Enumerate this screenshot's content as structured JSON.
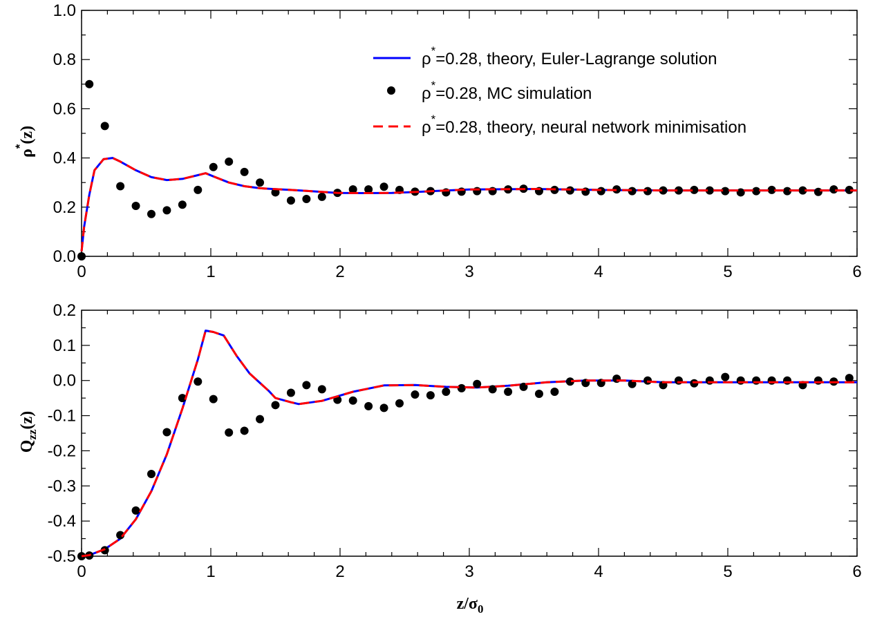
{
  "legend": {
    "items": [
      {
        "rho": "ρ",
        "sup": "*",
        "text": "=0.28, theory, Euler-Lagrange solution",
        "color": "#0000ff",
        "style": "solid"
      },
      {
        "rho": "ρ",
        "sup": "*",
        "text": "=0.28, MC simulation",
        "color": "#000000",
        "style": "dots"
      },
      {
        "rho": "ρ",
        "sup": "*",
        "text": "=0.28, theory, neural network minimisation",
        "color": "#ff0000",
        "style": "dashed"
      }
    ]
  },
  "axis_labels": {
    "top_y": {
      "main": "ρ",
      "sup": "*",
      "tail": "(z)"
    },
    "bottom_y": {
      "main": "Q",
      "sub": "zz",
      "tail": "(z)"
    },
    "x": {
      "main": "z/σ",
      "sub": "0"
    }
  },
  "chart_data": [
    {
      "type": "line",
      "panel": "top",
      "xlim": [
        0,
        6
      ],
      "ylim": [
        0,
        1
      ],
      "x_ticks": [
        "0",
        "1",
        "2",
        "3",
        "4",
        "5",
        "6"
      ],
      "y_ticks": [
        "0.0",
        "0.2",
        "0.4",
        "0.6",
        "0.8",
        "1.0"
      ],
      "x_tick_values": [
        0,
        1,
        2,
        3,
        4,
        5,
        6
      ],
      "y_tick_values": [
        0,
        0.2,
        0.4,
        0.6,
        0.8,
        1.0
      ],
      "grid": false,
      "legend_position": "top-right",
      "series": [
        {
          "name": "ρ*=0.28, theory, Euler-Lagrange solution",
          "color": "#0000ff",
          "style": "solid",
          "x": [
            0,
            0.02,
            0.06,
            0.1,
            0.17,
            0.24,
            0.3,
            0.42,
            0.54,
            0.66,
            0.78,
            0.9,
            0.96,
            1.02,
            1.14,
            1.26,
            1.38,
            1.5,
            1.62,
            1.74,
            1.86,
            1.98,
            2.2,
            2.4,
            2.6,
            2.8,
            3.0,
            3.5,
            4.0,
            4.5,
            5.0,
            5.5,
            6.0
          ],
          "y": [
            0.02,
            0.12,
            0.25,
            0.35,
            0.395,
            0.4,
            0.385,
            0.35,
            0.322,
            0.31,
            0.315,
            0.33,
            0.338,
            0.325,
            0.3,
            0.285,
            0.277,
            0.273,
            0.27,
            0.266,
            0.262,
            0.258,
            0.257,
            0.258,
            0.262,
            0.267,
            0.272,
            0.274,
            0.27,
            0.268,
            0.268,
            0.268,
            0.268
          ]
        },
        {
          "name": "ρ*=0.28, MC simulation",
          "color": "#000000",
          "style": "dots",
          "x": [
            0.0,
            0.06,
            0.18,
            0.3,
            0.42,
            0.54,
            0.66,
            0.78,
            0.9,
            1.02,
            1.14,
            1.26,
            1.38,
            1.5,
            1.62,
            1.74,
            1.86,
            1.98,
            2.1,
            2.22,
            2.34,
            2.46,
            2.58,
            2.7,
            2.82,
            2.94,
            3.06,
            3.18,
            3.3,
            3.42,
            3.54,
            3.66,
            3.78,
            3.9,
            4.02,
            4.14,
            4.26,
            4.38,
            4.5,
            4.62,
            4.74,
            4.86,
            4.98,
            5.1,
            5.22,
            5.34,
            5.46,
            5.58,
            5.7,
            5.82,
            5.94
          ],
          "y": [
            0.0,
            0.7,
            0.53,
            0.285,
            0.205,
            0.172,
            0.187,
            0.21,
            0.27,
            0.363,
            0.385,
            0.343,
            0.3,
            0.26,
            0.227,
            0.233,
            0.242,
            0.258,
            0.272,
            0.272,
            0.283,
            0.27,
            0.263,
            0.265,
            0.26,
            0.263,
            0.265,
            0.265,
            0.272,
            0.275,
            0.265,
            0.27,
            0.268,
            0.263,
            0.265,
            0.272,
            0.265,
            0.265,
            0.268,
            0.268,
            0.27,
            0.268,
            0.265,
            0.26,
            0.265,
            0.27,
            0.265,
            0.268,
            0.262,
            0.272,
            0.27
          ]
        },
        {
          "name": "ρ*=0.28, theory, neural network minimisation",
          "color": "#ff0000",
          "style": "dashed",
          "x": [
            0,
            0.02,
            0.06,
            0.1,
            0.17,
            0.24,
            0.3,
            0.42,
            0.54,
            0.66,
            0.78,
            0.9,
            0.96,
            1.02,
            1.14,
            1.26,
            1.38,
            1.5,
            1.62,
            1.74,
            1.86,
            1.98,
            2.2,
            2.4,
            2.6,
            2.8,
            3.0,
            3.5,
            4.0,
            4.5,
            5.0,
            5.5,
            6.0
          ],
          "y": [
            0.02,
            0.12,
            0.25,
            0.35,
            0.395,
            0.4,
            0.385,
            0.35,
            0.322,
            0.31,
            0.315,
            0.33,
            0.338,
            0.325,
            0.3,
            0.285,
            0.277,
            0.273,
            0.27,
            0.266,
            0.262,
            0.258,
            0.257,
            0.258,
            0.262,
            0.267,
            0.272,
            0.274,
            0.27,
            0.268,
            0.268,
            0.268,
            0.268
          ]
        }
      ]
    },
    {
      "type": "line",
      "panel": "bottom",
      "xlim": [
        0,
        6
      ],
      "ylim": [
        -0.5,
        0.2
      ],
      "x_ticks": [
        "0",
        "1",
        "2",
        "3",
        "4",
        "5",
        "6"
      ],
      "y_ticks": [
        "-0.5",
        "-0.4",
        "-0.3",
        "-0.2",
        "-0.1",
        "0.0",
        "0.1",
        "0.2"
      ],
      "x_tick_values": [
        0,
        1,
        2,
        3,
        4,
        5,
        6
      ],
      "y_tick_values": [
        -0.5,
        -0.4,
        -0.3,
        -0.2,
        -0.1,
        0.0,
        0.1,
        0.2
      ],
      "grid": false,
      "series": [
        {
          "color": "#0000ff",
          "style": "solid",
          "x": [
            0,
            0.06,
            0.18,
            0.3,
            0.42,
            0.54,
            0.66,
            0.78,
            0.9,
            0.96,
            1.02,
            1.1,
            1.2,
            1.3,
            1.45,
            1.5,
            1.62,
            1.68,
            1.86,
            2.1,
            2.34,
            2.58,
            2.82,
            3.06,
            3.3,
            3.6,
            3.9,
            4.2,
            4.5,
            5.0,
            5.5,
            6.0
          ],
          "y": [
            -0.5,
            -0.497,
            -0.48,
            -0.45,
            -0.395,
            -0.315,
            -0.21,
            -0.08,
            0.06,
            0.142,
            0.138,
            0.128,
            0.07,
            0.02,
            -0.03,
            -0.05,
            -0.062,
            -0.067,
            -0.058,
            -0.032,
            -0.014,
            -0.013,
            -0.018,
            -0.02,
            -0.015,
            -0.005,
            0.0,
            0.0,
            -0.005,
            -0.005,
            -0.005,
            -0.005
          ]
        },
        {
          "color": "#000000",
          "style": "dots",
          "x": [
            0.0,
            0.06,
            0.18,
            0.3,
            0.42,
            0.54,
            0.66,
            0.78,
            0.9,
            1.02,
            1.14,
            1.26,
            1.38,
            1.5,
            1.62,
            1.74,
            1.86,
            1.98,
            2.1,
            2.22,
            2.34,
            2.46,
            2.58,
            2.7,
            2.82,
            2.94,
            3.06,
            3.18,
            3.3,
            3.42,
            3.54,
            3.66,
            3.78,
            3.9,
            4.02,
            4.14,
            4.26,
            4.38,
            4.5,
            4.62,
            4.74,
            4.86,
            4.98,
            5.1,
            5.22,
            5.34,
            5.46,
            5.58,
            5.7,
            5.82,
            5.94
          ],
          "y": [
            -0.5,
            -0.498,
            -0.483,
            -0.44,
            -0.37,
            -0.266,
            -0.147,
            -0.05,
            -0.003,
            -0.053,
            -0.148,
            -0.143,
            -0.11,
            -0.07,
            -0.035,
            -0.013,
            -0.025,
            -0.055,
            -0.057,
            -0.073,
            -0.078,
            -0.065,
            -0.04,
            -0.042,
            -0.032,
            -0.022,
            -0.01,
            -0.025,
            -0.032,
            -0.018,
            -0.038,
            -0.032,
            -0.003,
            -0.007,
            -0.007,
            0.005,
            -0.01,
            0.0,
            -0.013,
            0.0,
            -0.008,
            0.0,
            0.01,
            0.0,
            0.0,
            0.0,
            0.0,
            -0.013,
            0.0,
            -0.003,
            0.007
          ]
        },
        {
          "color": "#ff0000",
          "style": "dashed",
          "x": [
            0,
            0.06,
            0.18,
            0.3,
            0.42,
            0.54,
            0.66,
            0.78,
            0.9,
            0.96,
            1.02,
            1.1,
            1.2,
            1.3,
            1.45,
            1.5,
            1.62,
            1.68,
            1.86,
            2.1,
            2.34,
            2.58,
            2.82,
            3.06,
            3.3,
            3.6,
            3.9,
            4.2,
            4.5,
            5.0,
            5.5,
            6.0
          ],
          "y": [
            -0.5,
            -0.497,
            -0.48,
            -0.45,
            -0.395,
            -0.315,
            -0.21,
            -0.08,
            0.06,
            0.142,
            0.138,
            0.128,
            0.07,
            0.02,
            -0.03,
            -0.05,
            -0.062,
            -0.067,
            -0.058,
            -0.032,
            -0.014,
            -0.013,
            -0.018,
            -0.02,
            -0.015,
            -0.005,
            0.0,
            0.0,
            -0.005,
            -0.005,
            -0.005,
            -0.005
          ]
        }
      ]
    }
  ]
}
